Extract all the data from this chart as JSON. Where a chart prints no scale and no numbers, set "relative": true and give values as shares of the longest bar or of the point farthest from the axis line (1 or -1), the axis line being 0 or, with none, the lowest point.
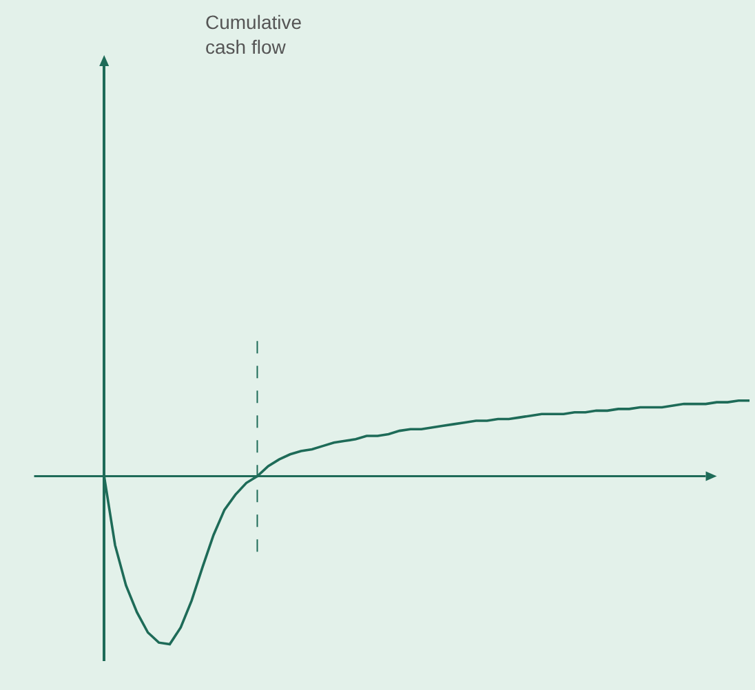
{
  "chart_data": {
    "type": "line",
    "annotations": [
      "Cumulative cash flow"
    ],
    "relative": true,
    "categories": [
      null,
      null,
      null,
      null,
      null,
      null,
      null,
      null,
      null,
      null,
      null,
      null,
      null,
      null,
      null,
      null,
      null,
      null,
      null,
      null,
      null,
      null,
      null,
      null,
      null,
      null,
      null,
      null,
      null,
      null,
      null,
      null,
      null,
      null,
      null,
      null,
      null,
      null,
      null,
      null,
      null,
      null,
      null,
      null,
      null,
      null,
      null,
      null,
      null,
      null,
      null,
      null,
      null,
      null,
      null,
      null,
      null,
      null,
      null,
      null
    ],
    "series": [
      {
        "color": "#1e6b58",
        "values": [
          0,
          -0.41,
          -0.65,
          -0.81,
          -0.93,
          -0.99,
          -1,
          -0.9,
          -0.74,
          -0.54,
          -0.35,
          -0.2,
          -0.11,
          -0.04,
          0,
          0.06,
          0.1,
          0.13,
          0.15,
          0.16,
          0.18,
          0.2,
          0.21,
          0.22,
          0.24,
          0.24,
          0.25,
          0.27,
          0.28,
          0.28,
          0.29,
          0.3,
          0.31,
          0.32,
          0.33,
          0.33,
          0.34,
          0.34,
          0.35,
          0.36,
          0.37,
          0.37,
          0.37,
          0.38,
          0.38,
          0.39,
          0.39,
          0.4,
          0.4,
          0.41,
          0.41,
          0.41,
          0.42,
          0.43,
          0.43,
          0.43,
          0.44,
          0.44,
          0.45,
          0.45
        ]
      }
    ],
    "ref_lines": [
      {
        "axis": "y",
        "value": 0,
        "color": "#1e6b58",
        "line_style": "solid"
      }
    ],
    "grid": false,
    "marker": "none",
    "line_style": "solid"
  }
}
